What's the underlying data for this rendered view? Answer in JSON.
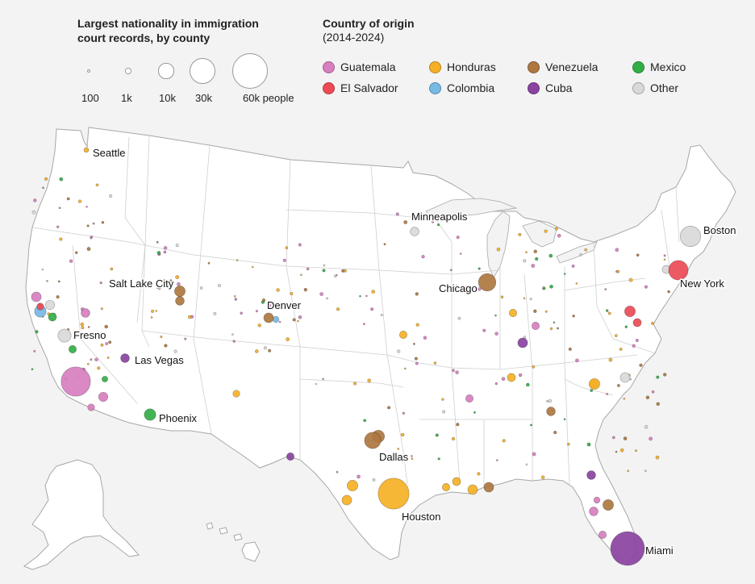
{
  "size_legend": {
    "title": "Largest nationality in immigration\ncourt records, by county",
    "items": [
      {
        "label": "100",
        "people": 100
      },
      {
        "label": "1k",
        "people": 1000
      },
      {
        "label": "10k",
        "people": 10000
      },
      {
        "label": "30k",
        "people": 30000
      },
      {
        "label": "60k people",
        "people": 60000
      }
    ]
  },
  "color_legend": {
    "title": "Country of origin",
    "subtitle": "(2014-2024)",
    "items": [
      {
        "label": "Guatemala",
        "color": "#d77fbf"
      },
      {
        "label": "Honduras",
        "color": "#f5b025"
      },
      {
        "label": "Venezuela",
        "color": "#ad7740"
      },
      {
        "label": "Mexico",
        "color": "#33ae45"
      },
      {
        "label": "El Salvador",
        "color": "#ec4b55"
      },
      {
        "label": "Colombia",
        "color": "#76b9e4"
      },
      {
        "label": "Cuba",
        "color": "#8a43a1"
      },
      {
        "label": "Other",
        "color": "#d9d9d9"
      }
    ]
  },
  "cities": [
    {
      "name": "Seattle",
      "nationality": "Honduras",
      "people": 1200
    },
    {
      "name": "Minneapolis",
      "nationality": "Other",
      "people": 4000
    },
    {
      "name": "Boston",
      "nationality": "Other",
      "people": 22000
    },
    {
      "name": "Salt Lake City",
      "nationality": "Venezuela",
      "people": 6000
    },
    {
      "name": "Chicago",
      "nationality": "Venezuela",
      "people": 16000
    },
    {
      "name": "New York",
      "nationality": "El Salvador",
      "people": 20000
    },
    {
      "name": "Denver",
      "nationality": "Venezuela",
      "people": 5000
    },
    {
      "name": "Fresno",
      "nationality": "Other",
      "people": 9000
    },
    {
      "name": "Las Vegas",
      "nationality": "Cuba",
      "people": 4000
    },
    {
      "name": "Phoenix",
      "nationality": "Mexico",
      "people": 7000
    },
    {
      "name": "Dallas",
      "nationality": "Venezuela",
      "people": 14000
    },
    {
      "name": "Houston",
      "nationality": "Honduras",
      "people": 50000
    },
    {
      "name": "Miami",
      "nationality": "Cuba",
      "people": 60000
    }
  ],
  "extra_bubbles": [
    {
      "nationality": "Guatemala",
      "people": 45000
    },
    {
      "nationality": "Colombia",
      "people": 7000
    },
    {
      "nationality": "Guatemala",
      "people": 5000
    },
    {
      "nationality": "El Salvador",
      "people": 2500
    },
    {
      "nationality": "Other",
      "people": 4500
    },
    {
      "nationality": "Mexico",
      "people": 3500
    },
    {
      "nationality": "Mexico",
      "people": 3000
    },
    {
      "nationality": "Guatemala",
      "people": 4000
    },
    {
      "nationality": "Mexico",
      "people": 1800
    },
    {
      "nationality": "Guatemala",
      "people": 4500
    },
    {
      "nationality": "Colombia",
      "people": 2000
    },
    {
      "nationality": "Honduras",
      "people": 6000
    },
    {
      "nationality": "Venezuela",
      "people": 8000
    },
    {
      "nationality": "Honduras",
      "people": 5000
    },
    {
      "nationality": "Honduras",
      "people": 3000
    },
    {
      "nationality": "Cuba",
      "people": 5000
    },
    {
      "nationality": "Venezuela",
      "people": 6000
    },
    {
      "nationality": "Guatemala",
      "people": 4000
    },
    {
      "nationality": "Other",
      "people": 5000
    },
    {
      "nationality": "Honduras",
      "people": 4000
    },
    {
      "nationality": "Venezuela",
      "people": 4000
    },
    {
      "nationality": "Guatemala",
      "people": 3000
    },
    {
      "nationality": "Cuba",
      "people": 4000
    },
    {
      "nationality": "Honduras",
      "people": 6000
    },
    {
      "nationality": "Venezuela",
      "people": 5000
    },
    {
      "nationality": "Honduras",
      "people": 5000
    },
    {
      "nationality": "Honduras",
      "people": 3500
    },
    {
      "nationality": "Honduras",
      "people": 3000
    },
    {
      "nationality": "Honduras",
      "people": 3500
    },
    {
      "nationality": "Guatemala",
      "people": 3000
    },
    {
      "nationality": "Venezuela",
      "people": 4000
    },
    {
      "nationality": "Guatemala",
      "people": 2500
    },
    {
      "nationality": "Honduras",
      "people": 3000
    },
    {
      "nationality": "El Salvador",
      "people": 6000
    },
    {
      "nationality": "El Salvador",
      "people": 3500
    },
    {
      "nationality": "Other",
      "people": 3500
    },
    {
      "nationality": "Guatemala",
      "people": 3000
    },
    {
      "nationality": "Cuba",
      "people": 3000
    },
    {
      "nationality": "Honduras",
      "people": 2500
    },
    {
      "nationality": "Guatemala",
      "people": 2000
    }
  ]
}
